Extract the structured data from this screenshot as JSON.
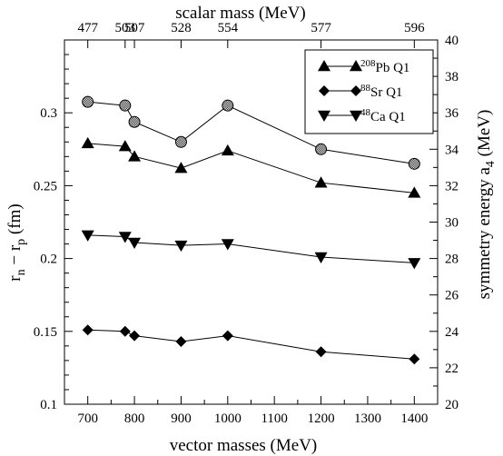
{
  "chart_data": {
    "type": "line",
    "xlabel": "vector masses (MeV)",
    "top_xlabel": "scalar mass (MeV)",
    "ylabel_left_main": "r",
    "ylabel_left_sub1": "n",
    "ylabel_left_mid": " − r",
    "ylabel_left_sub2": "p",
    "ylabel_left_unit": " (fm)",
    "ylabel_right_main": "symmetry energy a",
    "ylabel_right_sub": "4",
    "ylabel_right_unit": " (MeV)",
    "xlim": [
      650,
      1450
    ],
    "ylim": [
      0.1,
      0.35
    ],
    "y2lim": [
      20,
      40
    ],
    "x_ticks": [
      700,
      800,
      900,
      1000,
      1100,
      1200,
      1300,
      1400
    ],
    "y_ticks": [
      0.1,
      0.15,
      0.2,
      0.25,
      0.3
    ],
    "y_tick_labels": [
      "0.1",
      "0.15",
      "0.2",
      "0.25",
      "0.3"
    ],
    "y2_ticks": [
      20,
      22,
      24,
      26,
      28,
      30,
      32,
      34,
      36,
      38,
      40
    ],
    "top_ticks": [
      700,
      780,
      800,
      900,
      1000,
      1200,
      1400
    ],
    "top_tick_labels": [
      "477",
      "503",
      "507",
      "528",
      "554",
      "577",
      "596"
    ],
    "legend_position": "top-right",
    "series": [
      {
        "name_sup": "208",
        "name_main": "Pb",
        "name_suffix": "Q1",
        "marker": "triangle-up",
        "in_legend": true,
        "x": [
          700,
          780,
          800,
          900,
          1000,
          1200,
          1400
        ],
        "y": [
          0.279,
          0.277,
          0.27,
          0.262,
          0.274,
          0.252,
          0.245
        ]
      },
      {
        "name_sup": "88",
        "name_main": "Sr",
        "name_suffix": "Q1",
        "marker": "diamond",
        "in_legend": true,
        "x": [
          700,
          780,
          800,
          900,
          1000,
          1200,
          1400
        ],
        "y": [
          0.151,
          0.15,
          0.147,
          0.143,
          0.147,
          0.136,
          0.131
        ]
      },
      {
        "name_sup": "48",
        "name_main": "Ca",
        "name_suffix": "Q1",
        "marker": "triangle-down",
        "in_legend": true,
        "x": [
          700,
          780,
          800,
          900,
          1000,
          1200,
          1400
        ],
        "y": [
          0.216,
          0.215,
          0.211,
          0.209,
          0.21,
          0.201,
          0.197
        ]
      },
      {
        "marker": "hatched-circle",
        "in_legend": false,
        "axis": "right",
        "x": [
          700,
          780,
          800,
          900,
          1000,
          1200,
          1400
        ],
        "y": [
          36.6,
          36.4,
          35.5,
          34.4,
          36.4,
          34.0,
          33.2
        ]
      }
    ]
  }
}
